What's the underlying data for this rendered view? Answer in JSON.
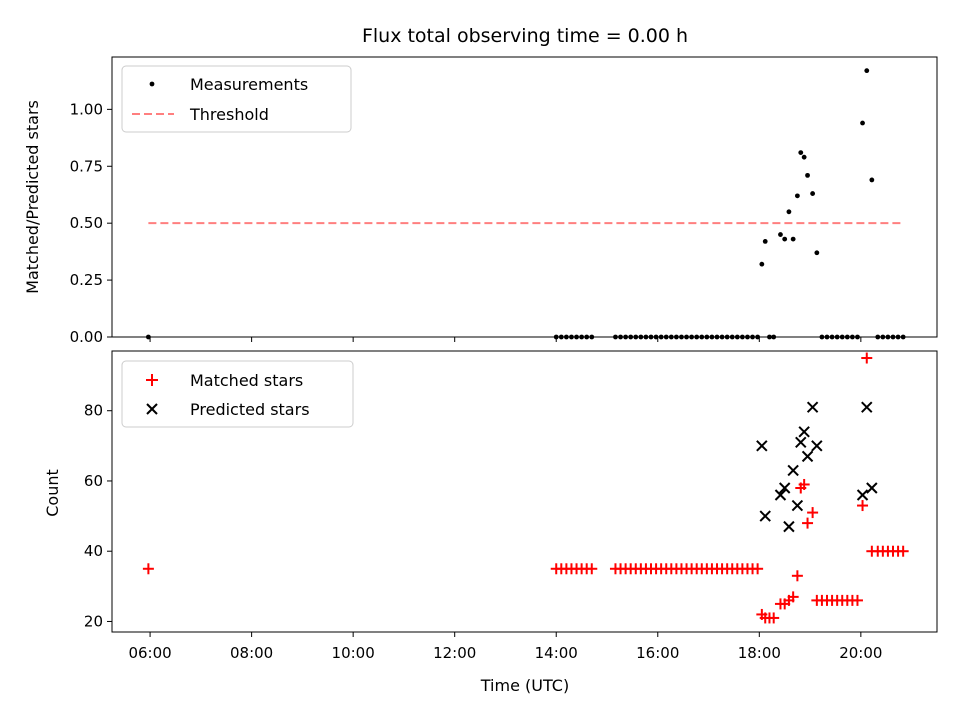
{
  "chart_data": [
    {
      "type": "scatter",
      "title": "Flux total observing time = 0.00 h",
      "xlabel": "",
      "ylabel": "Matched/Predicted stars",
      "xlim": [
        "05:15",
        "21:30"
      ],
      "ylim": [
        0,
        1.23
      ],
      "yticks": [
        "0.00",
        "0.25",
        "0.50",
        "0.75",
        "1.00"
      ],
      "grid": false,
      "legend": "top-left",
      "series": [
        {
          "name": "Measurements",
          "marker": "dot",
          "color": "#000000",
          "points": [
            [
              "05:58",
              0
            ],
            [
              "14:00",
              0
            ],
            [
              "14:06",
              0
            ],
            [
              "14:12",
              0
            ],
            [
              "14:18",
              0
            ],
            [
              "14:24",
              0
            ],
            [
              "14:30",
              0
            ],
            [
              "14:36",
              0
            ],
            [
              "14:42",
              0
            ],
            [
              "15:10",
              0
            ],
            [
              "15:16",
              0
            ],
            [
              "15:22",
              0
            ],
            [
              "15:28",
              0
            ],
            [
              "15:34",
              0
            ],
            [
              "15:40",
              0
            ],
            [
              "15:46",
              0
            ],
            [
              "15:52",
              0
            ],
            [
              "15:58",
              0
            ],
            [
              "16:04",
              0
            ],
            [
              "16:10",
              0
            ],
            [
              "16:16",
              0
            ],
            [
              "16:22",
              0
            ],
            [
              "16:28",
              0
            ],
            [
              "16:34",
              0
            ],
            [
              "16:40",
              0
            ],
            [
              "16:46",
              0
            ],
            [
              "16:52",
              0
            ],
            [
              "16:58",
              0
            ],
            [
              "17:04",
              0
            ],
            [
              "17:10",
              0
            ],
            [
              "17:16",
              0
            ],
            [
              "17:22",
              0
            ],
            [
              "17:28",
              0
            ],
            [
              "17:34",
              0
            ],
            [
              "17:40",
              0
            ],
            [
              "17:46",
              0
            ],
            [
              "17:52",
              0
            ],
            [
              "17:58",
              0
            ],
            [
              "18:03",
              0.32
            ],
            [
              "18:07",
              0.42
            ],
            [
              "18:12",
              0
            ],
            [
              "18:17",
              0
            ],
            [
              "18:25",
              0.45
            ],
            [
              "18:30",
              0.43
            ],
            [
              "18:35",
              0.55
            ],
            [
              "18:40",
              0.43
            ],
            [
              "18:45",
              0.62
            ],
            [
              "18:49",
              0.81
            ],
            [
              "18:53",
              0.79
            ],
            [
              "18:57",
              0.71
            ],
            [
              "19:03",
              0.63
            ],
            [
              "19:08",
              0.37
            ],
            [
              "19:14",
              0
            ],
            [
              "19:20",
              0
            ],
            [
              "19:26",
              0
            ],
            [
              "19:32",
              0
            ],
            [
              "19:38",
              0
            ],
            [
              "19:44",
              0
            ],
            [
              "19:50",
              0
            ],
            [
              "19:56",
              0
            ],
            [
              "20:02",
              0.94
            ],
            [
              "20:07",
              1.17
            ],
            [
              "20:13",
              0.69
            ],
            [
              "20:20",
              0
            ],
            [
              "20:26",
              0
            ],
            [
              "20:32",
              0
            ],
            [
              "20:38",
              0
            ],
            [
              "20:44",
              0
            ],
            [
              "20:50",
              0
            ]
          ]
        },
        {
          "name": "Threshold",
          "marker": "dashed-line",
          "color": "#ff7f7f",
          "points": [
            [
              "05:58",
              0.5
            ],
            [
              "20:50",
              0.5
            ]
          ]
        }
      ]
    },
    {
      "type": "scatter",
      "title": "",
      "xlabel": "Time (UTC)",
      "ylabel": "Count",
      "xlim": [
        "05:15",
        "21:30"
      ],
      "ylim": [
        17,
        97
      ],
      "xticks": [
        "06:00",
        "08:00",
        "10:00",
        "12:00",
        "14:00",
        "16:00",
        "18:00",
        "20:00"
      ],
      "yticks": [
        "20",
        "40",
        "60",
        "80"
      ],
      "grid": false,
      "legend": "top-left",
      "series": [
        {
          "name": "Matched stars",
          "marker": "plus",
          "color": "#ff0000",
          "points": [
            [
              "05:58",
              35
            ],
            [
              "14:00",
              35
            ],
            [
              "14:06",
              35
            ],
            [
              "14:12",
              35
            ],
            [
              "14:18",
              35
            ],
            [
              "14:24",
              35
            ],
            [
              "14:30",
              35
            ],
            [
              "14:36",
              35
            ],
            [
              "14:42",
              35
            ],
            [
              "15:10",
              35
            ],
            [
              "15:16",
              35
            ],
            [
              "15:22",
              35
            ],
            [
              "15:28",
              35
            ],
            [
              "15:34",
              35
            ],
            [
              "15:40",
              35
            ],
            [
              "15:46",
              35
            ],
            [
              "15:52",
              35
            ],
            [
              "15:58",
              35
            ],
            [
              "16:04",
              35
            ],
            [
              "16:10",
              35
            ],
            [
              "16:16",
              35
            ],
            [
              "16:22",
              35
            ],
            [
              "16:28",
              35
            ],
            [
              "16:34",
              35
            ],
            [
              "16:40",
              35
            ],
            [
              "16:46",
              35
            ],
            [
              "16:52",
              35
            ],
            [
              "16:58",
              35
            ],
            [
              "17:04",
              35
            ],
            [
              "17:10",
              35
            ],
            [
              "17:16",
              35
            ],
            [
              "17:22",
              35
            ],
            [
              "17:28",
              35
            ],
            [
              "17:34",
              35
            ],
            [
              "17:40",
              35
            ],
            [
              "17:46",
              35
            ],
            [
              "17:52",
              35
            ],
            [
              "17:58",
              35
            ],
            [
              "18:03",
              22
            ],
            [
              "18:07",
              21
            ],
            [
              "18:12",
              21
            ],
            [
              "18:17",
              21
            ],
            [
              "18:25",
              25
            ],
            [
              "18:30",
              25
            ],
            [
              "18:35",
              26
            ],
            [
              "18:40",
              27
            ],
            [
              "18:45",
              33
            ],
            [
              "18:49",
              58
            ],
            [
              "18:53",
              59
            ],
            [
              "18:57",
              48
            ],
            [
              "19:03",
              51
            ],
            [
              "19:08",
              26
            ],
            [
              "19:14",
              26
            ],
            [
              "19:20",
              26
            ],
            [
              "19:26",
              26
            ],
            [
              "19:32",
              26
            ],
            [
              "19:38",
              26
            ],
            [
              "19:44",
              26
            ],
            [
              "19:50",
              26
            ],
            [
              "19:56",
              26
            ],
            [
              "20:02",
              53
            ],
            [
              "20:07",
              95
            ],
            [
              "20:13",
              40
            ],
            [
              "20:20",
              40
            ],
            [
              "20:26",
              40
            ],
            [
              "20:32",
              40
            ],
            [
              "20:38",
              40
            ],
            [
              "20:44",
              40
            ],
            [
              "20:50",
              40
            ]
          ]
        },
        {
          "name": "Predicted stars",
          "marker": "x",
          "color": "#000000",
          "points": [
            [
              "18:03",
              70
            ],
            [
              "18:07",
              50
            ],
            [
              "18:25",
              56
            ],
            [
              "18:30",
              58
            ],
            [
              "18:35",
              47
            ],
            [
              "18:40",
              63
            ],
            [
              "18:45",
              53
            ],
            [
              "18:49",
              71
            ],
            [
              "18:53",
              74
            ],
            [
              "18:57",
              67
            ],
            [
              "19:03",
              81
            ],
            [
              "19:08",
              70
            ],
            [
              "20:02",
              56
            ],
            [
              "20:07",
              81
            ],
            [
              "20:13",
              58
            ]
          ]
        }
      ]
    }
  ]
}
